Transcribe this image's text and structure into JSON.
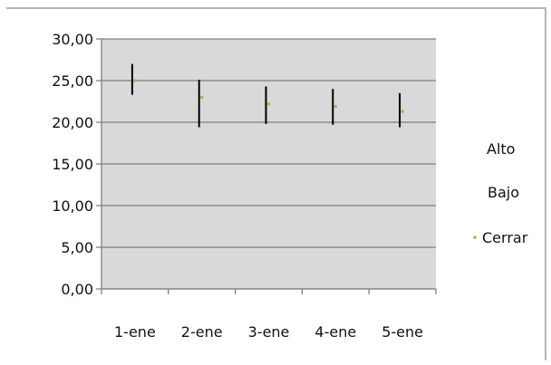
{
  "chart_data": {
    "type": "stock",
    "categories": [
      "1-ene",
      "2-ene",
      "3-ene",
      "4-ene",
      "5-ene"
    ],
    "series": [
      {
        "name": "Alto",
        "values": [
          27.0,
          25.1,
          24.3,
          24.0,
          23.5
        ]
      },
      {
        "name": "Bajo",
        "values": [
          23.3,
          19.4,
          19.8,
          19.7,
          19.4
        ]
      },
      {
        "name": "Cerrar",
        "values": [
          25.0,
          23.0,
          22.2,
          21.9,
          21.3
        ]
      }
    ],
    "ylim": [
      0,
      30
    ],
    "yticks": [
      "0,00",
      "5,00",
      "10,00",
      "15,00",
      "20,00",
      "25,00",
      "30,00"
    ],
    "grid": true,
    "legend_position": "right",
    "colors": {
      "plot_background": "#d9d9d9",
      "gridline": "#7f7f7f",
      "axis": "#808080",
      "hilo_line": "#000000",
      "close_marker": "#9bbb59"
    }
  }
}
